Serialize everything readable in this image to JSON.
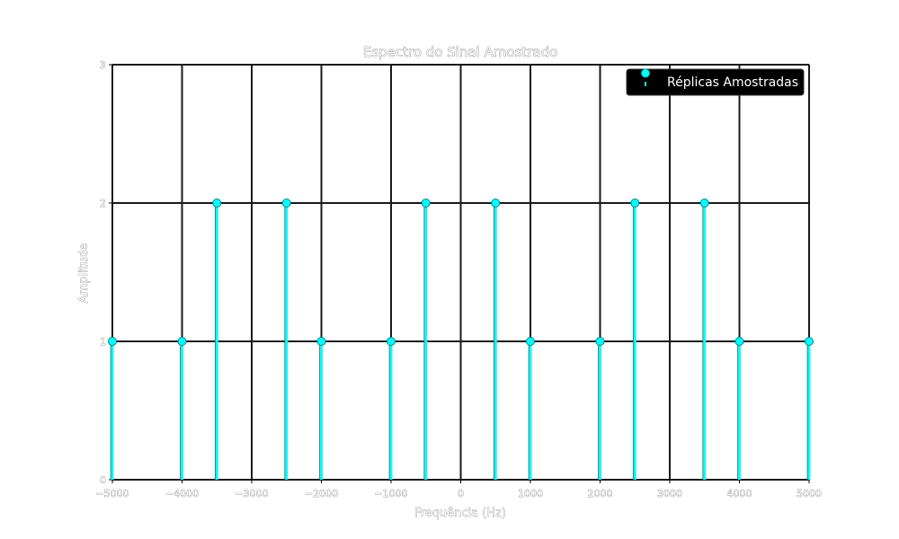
{
  "chart_data": {
    "type": "stem",
    "title": "Espectro do Sinal Amostrado",
    "xlabel": "Frequência (Hz)",
    "ylabel": "Amplitude",
    "xlim": [
      -5000,
      5000
    ],
    "ylim": [
      0,
      3
    ],
    "xticks": [
      -5000,
      -4000,
      -3000,
      -2000,
      -1000,
      0,
      1000,
      2000,
      3000,
      4000,
      5000
    ],
    "xtick_labels": [
      "−5000",
      "−4000",
      "−3000",
      "−2000",
      "−1000",
      "0",
      "1000",
      "2000",
      "3000",
      "4000",
      "5000"
    ],
    "yticks": [
      0,
      1,
      2,
      3
    ],
    "ytick_labels": [
      "0",
      "1",
      "2",
      "3"
    ],
    "grid": true,
    "legend_position": "top-right",
    "series": [
      {
        "name": "Réplicas Amostradas",
        "color": "#00ffff",
        "x": [
          -5000,
          -4000,
          -3500,
          -2500,
          -2000,
          -1000,
          -500,
          500,
          1000,
          2000,
          2500,
          3500,
          4000,
          5000
        ],
        "y": [
          1,
          1,
          2,
          2,
          1,
          1,
          2,
          2,
          1,
          1,
          2,
          2,
          1,
          1
        ]
      }
    ]
  },
  "colors": {
    "plot_background": "#ffffff",
    "grid": "#1a1a1a",
    "stem": "#00ffff",
    "legend_background": "#000000"
  }
}
